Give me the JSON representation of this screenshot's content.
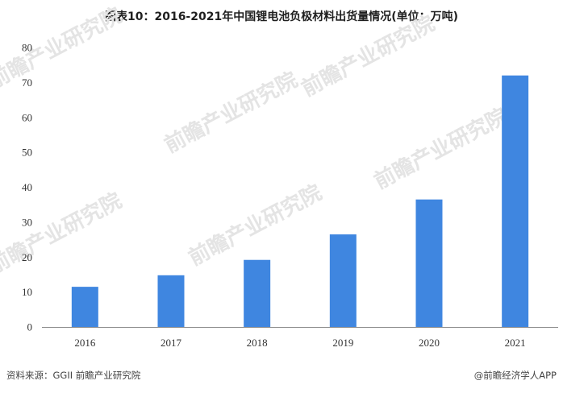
{
  "title": "图表10：2016-2021年中国锂电池负极材料出货量情况(单位：万吨)",
  "watermark": "前瞻产业研究院",
  "footer": {
    "source": "资料来源：GGII 前瞻产业研究院",
    "brand": "@前瞻经济学人APP"
  },
  "chart_data": {
    "type": "bar",
    "categories": [
      "2016",
      "2017",
      "2018",
      "2019",
      "2020",
      "2021"
    ],
    "values": [
      11.5,
      14.8,
      19.2,
      26.5,
      36.5,
      72.0
    ],
    "ylim": [
      0,
      80
    ],
    "yticks": [
      0,
      10,
      20,
      30,
      40,
      50,
      60,
      70,
      80
    ],
    "bar_color": "#3f86e0",
    "grid": false
  }
}
